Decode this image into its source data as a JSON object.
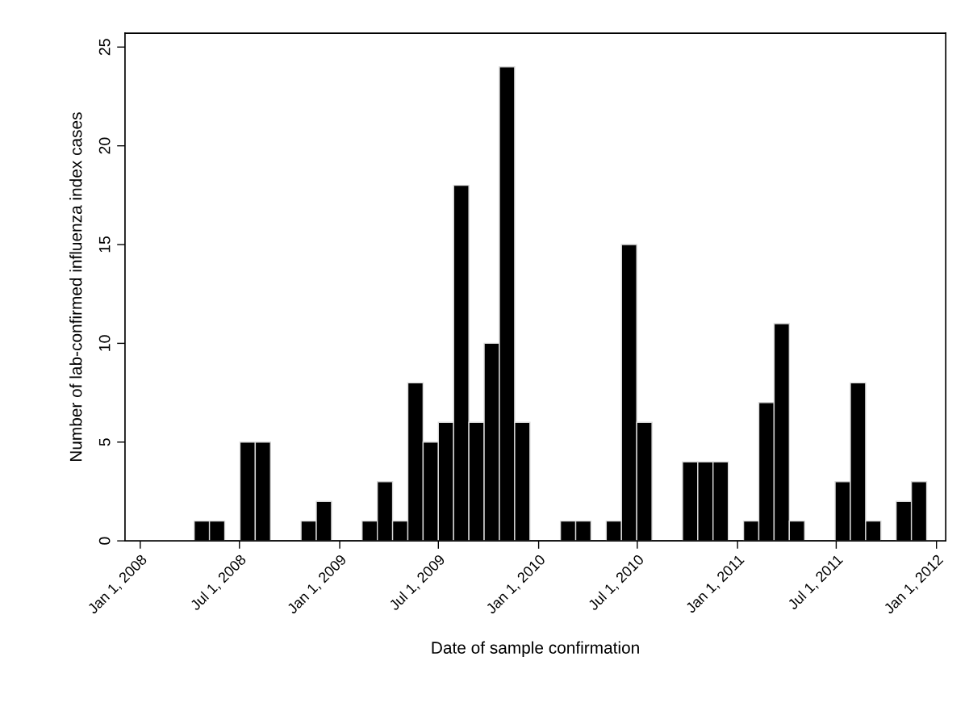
{
  "chart_data": {
    "type": "histogram",
    "xlabel": "Date of sample confirmation",
    "ylabel": "Number of lab-confirmed influenza index cases",
    "bins": [
      "2008-04-09",
      "2008-05-07",
      "2008-06-04",
      "2008-07-02",
      "2008-07-30",
      "2008-08-27",
      "2008-09-24",
      "2008-10-22",
      "2008-11-19",
      "2008-12-17",
      "2009-01-14",
      "2009-02-11",
      "2009-03-11",
      "2009-04-08",
      "2009-05-06",
      "2009-06-03",
      "2009-07-01",
      "2009-07-29",
      "2009-08-26",
      "2009-09-23",
      "2009-10-21",
      "2009-11-18",
      "2009-12-16",
      "2010-01-13",
      "2010-02-10",
      "2010-03-10",
      "2010-04-07",
      "2010-05-05",
      "2010-06-02",
      "2010-06-30",
      "2010-07-28",
      "2010-08-25",
      "2010-09-22",
      "2010-10-20",
      "2010-11-17",
      "2010-12-15",
      "2011-01-12",
      "2011-02-09",
      "2011-03-09",
      "2011-04-06",
      "2011-05-04",
      "2011-06-01",
      "2011-06-29",
      "2011-07-27",
      "2011-08-24",
      "2011-09-21",
      "2011-10-19",
      "2011-11-16",
      "2011-12-14"
    ],
    "values": [
      1,
      1,
      0,
      5,
      5,
      0,
      0,
      1,
      2,
      0,
      0,
      1,
      3,
      1,
      8,
      5,
      6,
      18,
      6,
      10,
      24,
      6,
      0,
      0,
      1,
      1,
      0,
      1,
      15,
      6,
      0,
      0,
      4,
      4,
      4,
      0,
      1,
      7,
      11,
      1,
      0,
      0,
      3,
      8,
      1,
      0,
      2,
      3
    ],
    "color": "#000000",
    "xlim": [
      "2007-12-04",
      "2012-01-18"
    ],
    "xticks": [
      {
        "value": "2008-01-01",
        "label": "Jan 1, 2008"
      },
      {
        "value": "2008-07-01",
        "label": "Jul 1, 2008"
      },
      {
        "value": "2009-01-01",
        "label": "Jan 1, 2009"
      },
      {
        "value": "2009-07-01",
        "label": "Jul 1, 2009"
      },
      {
        "value": "2010-01-01",
        "label": "Jan 1, 2010"
      },
      {
        "value": "2010-07-01",
        "label": "Jul 1, 2010"
      },
      {
        "value": "2011-01-01",
        "label": "Jan 1, 2011"
      },
      {
        "value": "2011-07-01",
        "label": "Jul 1, 2011"
      },
      {
        "value": "2012-01-01",
        "label": "Jan 1, 2012"
      }
    ],
    "ylim": [
      0,
      25.7
    ],
    "yticks": [
      0,
      5,
      10,
      15,
      20,
      25
    ],
    "grid": false,
    "legend": false
  }
}
